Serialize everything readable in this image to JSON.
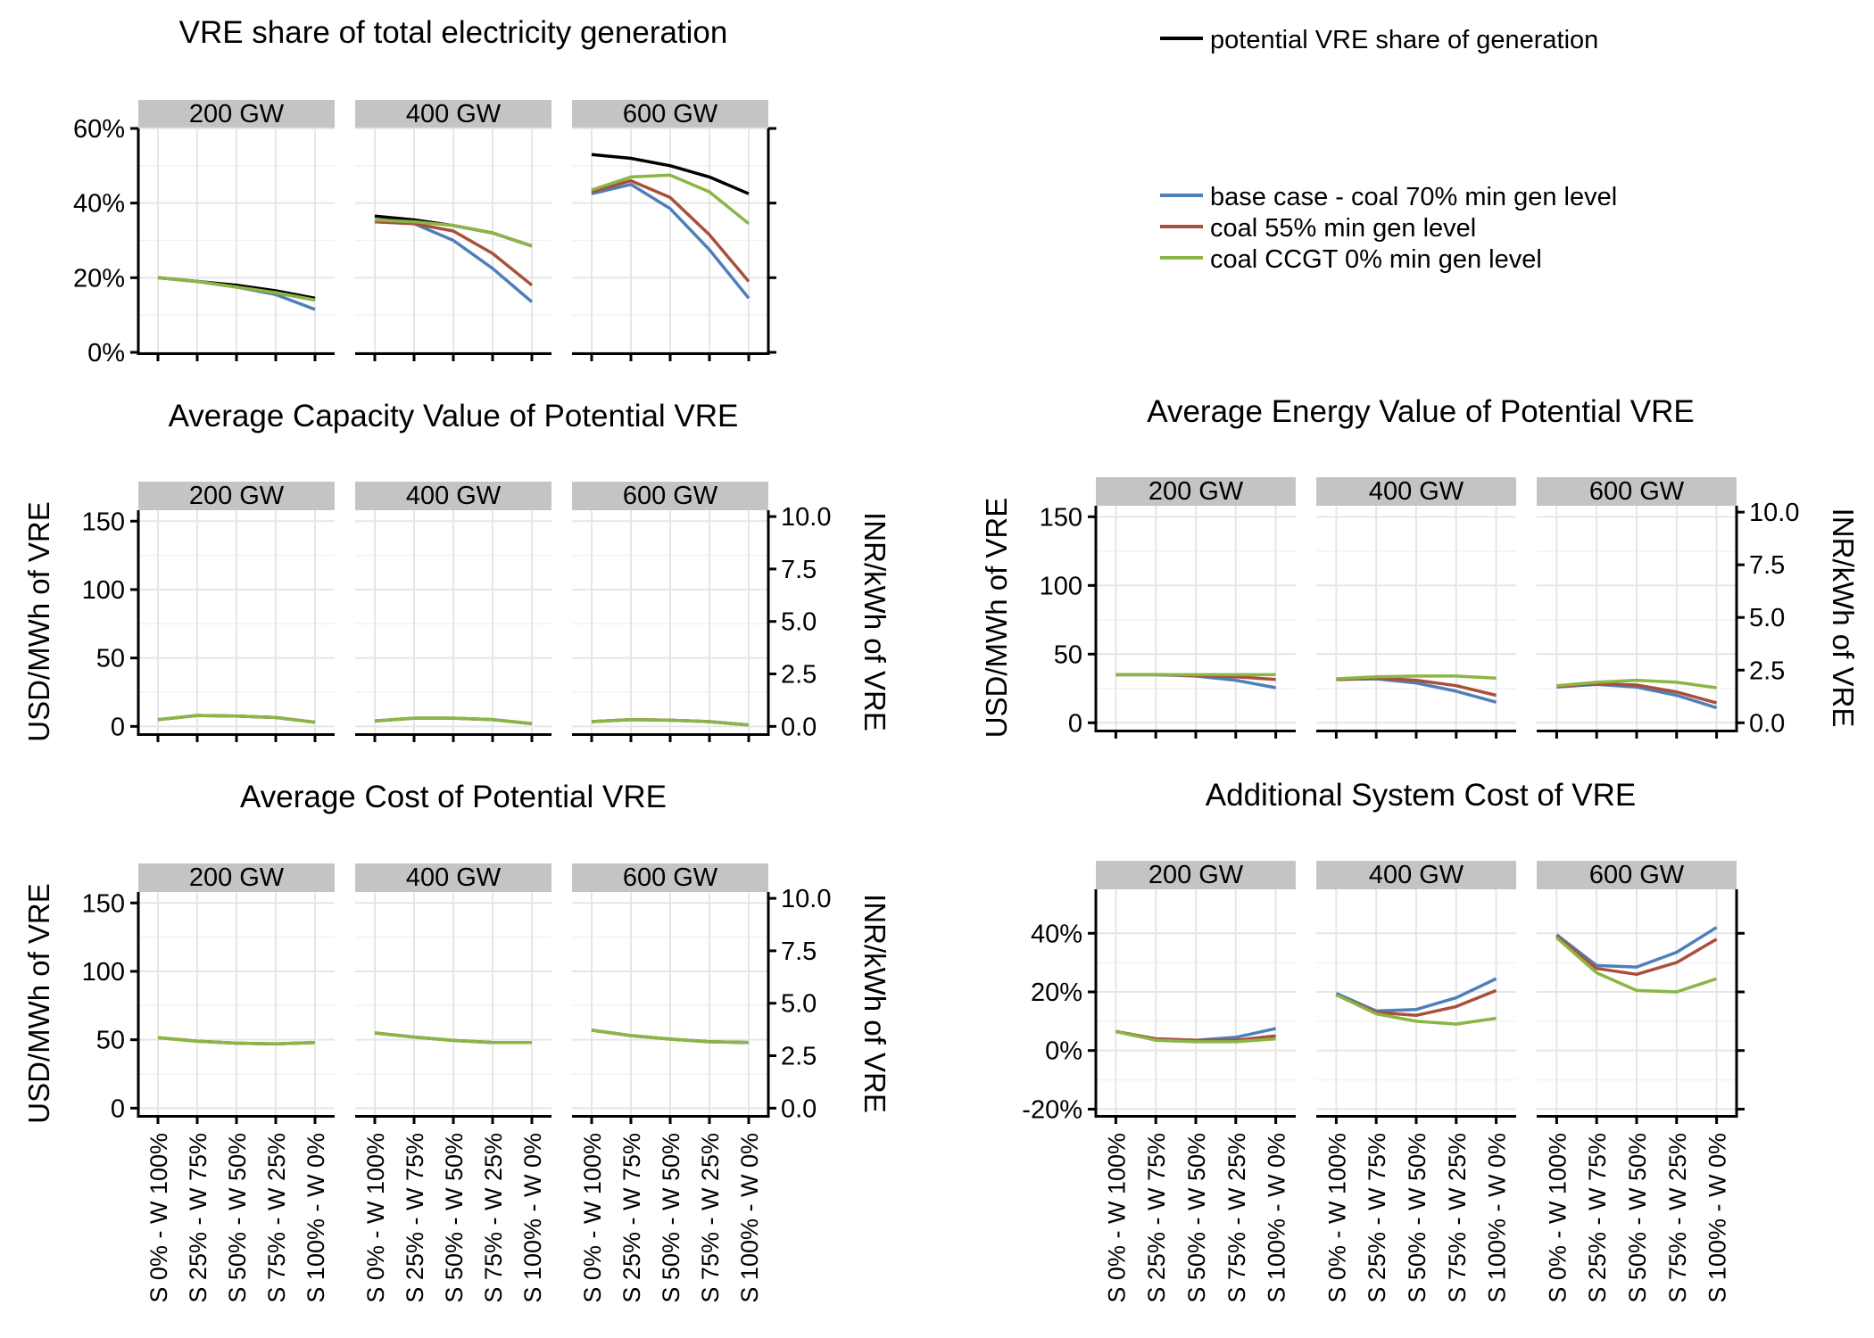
{
  "legend": {
    "entries": [
      {
        "label": "potential VRE share of generation",
        "color": "#000000"
      },
      {
        "label": "base case - coal 70% min gen level",
        "color": "#4F7FBB"
      },
      {
        "label": "coal 55% min gen level",
        "color": "#A8503A"
      },
      {
        "label": "coal CCGT 0% min gen level",
        "color": "#8BB544"
      }
    ]
  },
  "colors": {
    "potential": "#000000",
    "base": "#4F7FBB",
    "coal55": "#A8503A",
    "ccgt0": "#8BB544",
    "strip": "#C4C4C4",
    "grid": "#E6E6E6"
  },
  "chart_data": [
    {
      "type": "line",
      "title": "VRE share of total electricity generation",
      "facets": [
        "200 GW",
        "400 GW",
        "600 GW"
      ],
      "categories": [
        "S 0% - W 100%",
        "S 25% - W 75%",
        "S 50% - W 50%",
        "S 75% - W 25%",
        "S 100% - W 0%"
      ],
      "ylim": [
        0,
        0.6
      ],
      "yticks": [
        0,
        0.2,
        0.4,
        0.6
      ],
      "ytick_labels": [
        "0%",
        "20%",
        "40%",
        "60%"
      ],
      "ylabel": "",
      "y2label": "",
      "y2ticks": [],
      "y2tick_labels": [],
      "series": [
        {
          "key": "potential",
          "name": "potential VRE share of generation",
          "values": [
            [
              0.2,
              0.19,
              0.18,
              0.165,
              0.145
            ],
            [
              0.365,
              0.355,
              0.34,
              0.32,
              0.285
            ],
            [
              0.53,
              0.52,
              0.5,
              0.47,
              0.425
            ]
          ]
        },
        {
          "key": "base",
          "name": "base case - coal 70% min gen level",
          "values": [
            [
              0.2,
              0.19,
              0.175,
              0.155,
              0.115
            ],
            [
              0.35,
              0.345,
              0.3,
              0.225,
              0.135
            ],
            [
              0.425,
              0.45,
              0.385,
              0.275,
              0.145
            ]
          ]
        },
        {
          "key": "coal55",
          "name": "coal 55% min gen level",
          "values": [
            [
              0.2,
              0.19,
              0.175,
              0.16,
              0.14
            ],
            [
              0.35,
              0.345,
              0.325,
              0.265,
              0.18
            ],
            [
              0.43,
              0.46,
              0.415,
              0.315,
              0.19
            ]
          ]
        },
        {
          "key": "ccgt0",
          "name": "coal CCGT 0% min gen level",
          "values": [
            [
              0.2,
              0.19,
              0.175,
              0.16,
              0.14
            ],
            [
              0.355,
              0.35,
              0.34,
              0.32,
              0.285
            ],
            [
              0.435,
              0.47,
              0.475,
              0.43,
              0.345
            ]
          ]
        }
      ],
      "show_xtick_labels": false
    },
    {
      "type": "line",
      "title": "Average Capacity Value of Potential VRE",
      "facets": [
        "200 GW",
        "400 GW",
        "600 GW"
      ],
      "categories": [
        "S 0% - W 100%",
        "S 25% - W 75%",
        "S 50% - W 50%",
        "S 75% - W 25%",
        "S 100% - W 0%"
      ],
      "ylim": [
        -5,
        158
      ],
      "yticks": [
        0,
        50,
        100,
        150
      ],
      "ytick_labels": [
        "0",
        "50",
        "100",
        "150"
      ],
      "ylabel": "USD/MWh of VRE",
      "y2label": "INR/kWh of VRE",
      "y2ticks": [
        0,
        2.5,
        5,
        7.5,
        10
      ],
      "y2tick_labels": [
        "0.0",
        "2.5",
        "5.0",
        "7.5",
        "10.0"
      ],
      "y2_factor": 0.0652,
      "series": [
        {
          "key": "base",
          "name": "base case - coal 70% min gen level",
          "values": [
            [
              5,
              8,
              7.5,
              6.5,
              3
            ],
            [
              4,
              6,
              6,
              5,
              2
            ],
            [
              3.5,
              5,
              4.5,
              3.5,
              1
            ]
          ]
        },
        {
          "key": "coal55",
          "name": "coal 55% min gen level",
          "values": [
            [
              5,
              8,
              7.5,
              6.5,
              3
            ],
            [
              4,
              6,
              6,
              5,
              2
            ],
            [
              3.5,
              5,
              4.5,
              3.5,
              1
            ]
          ]
        },
        {
          "key": "ccgt0",
          "name": "coal CCGT 0% min gen level",
          "values": [
            [
              5,
              8,
              7.5,
              6.5,
              3
            ],
            [
              4,
              6,
              6,
              5,
              2
            ],
            [
              3.5,
              5,
              4.5,
              3.5,
              1
            ]
          ]
        }
      ],
      "show_xtick_labels": false
    },
    {
      "type": "line",
      "title": "Average Energy Value of Potential VRE",
      "facets": [
        "200 GW",
        "400 GW",
        "600 GW"
      ],
      "categories": [
        "S 0% - W 100%",
        "S 25% - W 75%",
        "S 50% - W 50%",
        "S 75% - W 25%",
        "S 100% - W 0%"
      ],
      "ylim": [
        -5,
        158
      ],
      "yticks": [
        0,
        50,
        100,
        150
      ],
      "ytick_labels": [
        "0",
        "50",
        "100",
        "150"
      ],
      "ylabel": "USD/MWh of VRE",
      "y2label": "INR/kWh of VRE",
      "y2ticks": [
        0,
        2.5,
        5,
        7.5,
        10
      ],
      "y2tick_labels": [
        "0.0",
        "2.5",
        "5.0",
        "7.5",
        "10.0"
      ],
      "y2_factor": 0.0652,
      "series": [
        {
          "key": "base",
          "name": "base case - coal 70% min gen level",
          "values": [
            [
              35,
              35,
              34,
              31,
              25.5
            ],
            [
              31.5,
              32,
              29,
              23,
              15
            ],
            [
              26,
              28,
              26,
              20,
              11
            ]
          ]
        },
        {
          "key": "coal55",
          "name": "coal 55% min gen level",
          "values": [
            [
              35,
              35,
              34.5,
              33.5,
              31.5
            ],
            [
              31.5,
              32.5,
              31,
              27,
              20
            ],
            [
              26.5,
              28.5,
              27.5,
              22.5,
              14.5
            ]
          ]
        },
        {
          "key": "ccgt0",
          "name": "coal CCGT 0% min gen level",
          "values": [
            [
              35,
              35,
              35,
              35,
              35
            ],
            [
              32,
              33.5,
              34,
              34,
              32.5
            ],
            [
              27,
              29.5,
              31,
              29.5,
              25.5
            ]
          ]
        }
      ],
      "show_xtick_labels": false
    },
    {
      "type": "line",
      "title": "Average Cost of Potential VRE",
      "facets": [
        "200 GW",
        "400 GW",
        "600 GW"
      ],
      "categories": [
        "S 0% - W 100%",
        "S 25% - W 75%",
        "S 50% - W 50%",
        "S 75% - W 25%",
        "S 100% - W 0%"
      ],
      "ylim": [
        -5,
        158
      ],
      "yticks": [
        0,
        50,
        100,
        150
      ],
      "ytick_labels": [
        "0",
        "50",
        "100",
        "150"
      ],
      "ylabel": "USD/MWh of VRE",
      "y2label": "INR/kWh of VRE",
      "y2ticks": [
        0,
        2.5,
        5,
        7.5,
        10
      ],
      "y2tick_labels": [
        "0.0",
        "2.5",
        "5.0",
        "7.5",
        "10.0"
      ],
      "y2_factor": 0.0652,
      "series": [
        {
          "key": "base",
          "name": "base case - coal 70% min gen level",
          "values": [
            [
              51.5,
              49,
              47.5,
              47,
              48
            ],
            [
              55,
              52,
              49.5,
              48,
              48
            ],
            [
              57,
              53,
              50.5,
              48.5,
              48
            ]
          ]
        },
        {
          "key": "coal55",
          "name": "coal 55% min gen level",
          "values": [
            [
              51.5,
              49,
              47.5,
              47,
              48
            ],
            [
              55,
              52,
              49.5,
              48,
              48
            ],
            [
              57,
              53,
              50.5,
              48.5,
              48
            ]
          ]
        },
        {
          "key": "ccgt0",
          "name": "coal CCGT 0% min gen level",
          "values": [
            [
              51.5,
              49,
              47.5,
              47,
              48
            ],
            [
              55,
              52,
              49.5,
              48,
              48
            ],
            [
              57,
              53,
              50.5,
              48.5,
              48
            ]
          ]
        }
      ],
      "show_xtick_labels": true
    },
    {
      "type": "line",
      "title": "Additional System Cost of VRE",
      "facets": [
        "200 GW",
        "400 GW",
        "600 GW"
      ],
      "categories": [
        "S 0% - W 100%",
        "S 25% - W 75%",
        "S 50% - W 50%",
        "S 75% - W 25%",
        "S 100% - W 0%"
      ],
      "ylim": [
        -0.22,
        0.55
      ],
      "yticks": [
        -0.2,
        0,
        0.2,
        0.4
      ],
      "ytick_labels": [
        "-20%",
        "0%",
        "20%",
        "40%"
      ],
      "ylabel": "",
      "y2label": "",
      "y2ticks": [],
      "y2tick_labels": [],
      "series": [
        {
          "key": "base",
          "name": "base case - coal 70% min gen level",
          "values": [
            [
              0.065,
              0.04,
              0.035,
              0.045,
              0.075
            ],
            [
              0.195,
              0.135,
              0.14,
              0.18,
              0.245
            ],
            [
              0.395,
              0.29,
              0.285,
              0.335,
              0.42
            ]
          ]
        },
        {
          "key": "coal55",
          "name": "coal 55% min gen level",
          "values": [
            [
              0.065,
              0.04,
              0.035,
              0.035,
              0.05
            ],
            [
              0.19,
              0.13,
              0.12,
              0.15,
              0.205
            ],
            [
              0.39,
              0.28,
              0.26,
              0.3,
              0.38
            ]
          ]
        },
        {
          "key": "ccgt0",
          "name": "coal CCGT 0% min gen level",
          "values": [
            [
              0.065,
              0.035,
              0.03,
              0.03,
              0.04
            ],
            [
              0.19,
              0.125,
              0.1,
              0.09,
              0.11
            ],
            [
              0.385,
              0.265,
              0.205,
              0.2,
              0.245
            ]
          ]
        }
      ],
      "show_xtick_labels": true
    }
  ]
}
